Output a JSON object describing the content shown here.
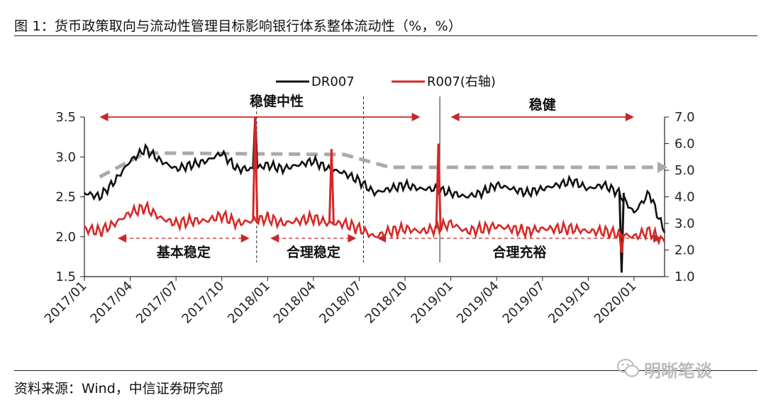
{
  "figure": {
    "title": "图 1：货币政策取向与流动性管理目标影响银行体系整体流动性（%，%）",
    "source": "资料来源：Wind，中信证券研究部",
    "watermark": "明晰笔谈"
  },
  "chart_data": {
    "type": "line",
    "title": "",
    "x_ticks": [
      "2017/01",
      "2017/04",
      "2017/07",
      "2017/10",
      "2018/01",
      "2018/04",
      "2018/07",
      "2018/10",
      "2019/01",
      "2019/04",
      "2019/07",
      "2019/10",
      "2020/01"
    ],
    "x_range": [
      "2017/01",
      "2020/03"
    ],
    "y_left": {
      "range": [
        1.5,
        3.5
      ],
      "ticks": [
        "1.5",
        "2.0",
        "2.5",
        "3.0",
        "3.5"
      ]
    },
    "y_right": {
      "range": [
        1.0,
        7.0
      ],
      "ticks": [
        "1.0",
        "2.0",
        "3.0",
        "4.0",
        "5.0",
        "6.0",
        "7.0"
      ]
    },
    "legend": {
      "position": "top-center"
    },
    "series": [
      {
        "name": "DR007",
        "axis": "left",
        "color": "#111111",
        "x": [
          "2017/01",
          "2017/02",
          "2017/03",
          "2017/04",
          "2017/05",
          "2017/06",
          "2017/07",
          "2017/08",
          "2017/09",
          "2017/10",
          "2017/11",
          "2017/12",
          "2018/01",
          "2018/02",
          "2018/03",
          "2018/04",
          "2018/05",
          "2018/06",
          "2018/07",
          "2018/08",
          "2018/09",
          "2018/10",
          "2018/11",
          "2018/12",
          "2019/01",
          "2019/02",
          "2019/03",
          "2019/04",
          "2019/05",
          "2019/06",
          "2019/07",
          "2019/08",
          "2019/09",
          "2019/10",
          "2019/11",
          "2019/12",
          "2020/01",
          "2020/02",
          "2020/03"
        ],
        "values": [
          2.55,
          2.5,
          2.7,
          2.95,
          3.1,
          2.95,
          2.85,
          2.9,
          2.95,
          3.05,
          2.85,
          2.85,
          2.9,
          2.85,
          2.9,
          2.95,
          2.85,
          2.8,
          2.7,
          2.55,
          2.6,
          2.65,
          2.6,
          2.6,
          2.55,
          2.5,
          2.55,
          2.65,
          2.6,
          2.55,
          2.6,
          2.65,
          2.7,
          2.6,
          2.65,
          2.55,
          2.3,
          2.55,
          2.05
        ]
      },
      {
        "name": "R007(右轴)",
        "axis": "right",
        "color": "#d62828",
        "x": [
          "2017/01",
          "2017/02",
          "2017/03",
          "2017/04",
          "2017/05",
          "2017/06",
          "2017/07",
          "2017/08",
          "2017/09",
          "2017/10",
          "2017/11",
          "2017/12",
          "2018/01",
          "2018/02",
          "2018/03",
          "2018/04",
          "2018/05",
          "2018/06",
          "2018/07",
          "2018/08",
          "2018/09",
          "2018/10",
          "2018/11",
          "2018/12",
          "2019/01",
          "2019/02",
          "2019/03",
          "2019/04",
          "2019/05",
          "2019/06",
          "2019/07",
          "2019/08",
          "2019/09",
          "2019/10",
          "2019/11",
          "2019/12",
          "2020/01",
          "2020/02",
          "2020/03"
        ],
        "values": [
          2.8,
          2.7,
          3.0,
          3.4,
          3.6,
          3.2,
          3.0,
          3.1,
          3.1,
          3.3,
          3.0,
          3.1,
          3.2,
          3.0,
          3.1,
          3.2,
          3.0,
          3.0,
          2.8,
          2.5,
          2.7,
          2.8,
          2.7,
          2.8,
          3.0,
          2.7,
          2.8,
          2.9,
          2.8,
          2.7,
          2.8,
          2.8,
          2.8,
          2.7,
          2.7,
          2.6,
          2.5,
          2.7,
          2.3
        ]
      }
    ],
    "spikes": [
      {
        "series": "DR007",
        "x": "2017/12",
        "value": 3.5
      },
      {
        "series": "DR007",
        "x": "2019/12",
        "value": 1.55
      },
      {
        "series": "R007(右轴)",
        "x": "2017/12",
        "value": 7.0
      },
      {
        "series": "R007(右轴)",
        "x": "2018/05",
        "value": 5.8
      },
      {
        "series": "R007(右轴)",
        "x": "2018/12",
        "value": 6.0
      },
      {
        "series": "R007(右轴)",
        "x": "2019/12",
        "value": 1.9
      }
    ],
    "trend_line": {
      "axis": "left",
      "color": "#aaaaaa",
      "points": [
        [
          "2017/02",
          2.75
        ],
        [
          "2017/05",
          3.05
        ],
        [
          "2018/06",
          3.03
        ],
        [
          "2018/09",
          2.87
        ],
        [
          "2020/03",
          2.87
        ]
      ]
    },
    "regime_dividers": [
      {
        "x": "2017/12",
        "style": "dashed"
      },
      {
        "x": "2018/07",
        "style": "dashed"
      },
      {
        "x": "2018/12",
        "style": "solid"
      }
    ],
    "annotations": {
      "policy": [
        {
          "label": "稳健中性",
          "from": "2017/02",
          "to": "2018/11"
        },
        {
          "label": "稳健",
          "from": "2019/01",
          "to": "2020/01"
        }
      ],
      "liquidity": [
        {
          "label": "基本稳定",
          "from": "2017/03",
          "to": "2017/12"
        },
        {
          "label": "合理稳定",
          "from": "2018/01",
          "to": "2018/07"
        },
        {
          "label": "合理充裕",
          "from": "2018/08",
          "to": "2020/03"
        }
      ]
    }
  }
}
